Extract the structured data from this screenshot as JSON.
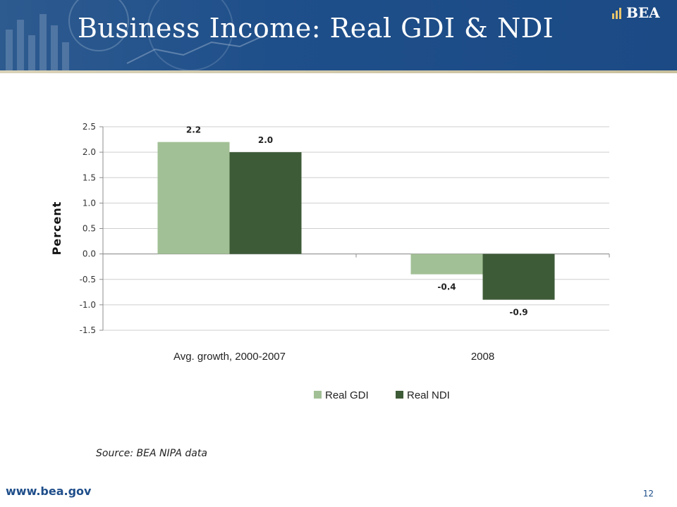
{
  "header": {
    "title": "Business Income: Real GDI & NDI",
    "logo": "BEA"
  },
  "chart_data": {
    "type": "bar",
    "categories": [
      "Avg. growth, 2000-2007",
      "2008"
    ],
    "series": [
      {
        "name": "Real GDI",
        "values": [
          2.2,
          -0.4
        ],
        "color": "#a2c095"
      },
      {
        "name": "Real NDI",
        "values": [
          2.0,
          -0.9
        ],
        "color": "#3e5b37"
      }
    ],
    "data_labels": [
      [
        "2.2",
        "-0.4"
      ],
      [
        "2.0",
        "-0.9"
      ]
    ],
    "ylabel": "Percent",
    "ylim": [
      -1.5,
      2.5
    ],
    "yticks": [
      2.5,
      2.0,
      1.5,
      1.0,
      0.5,
      0.0,
      -0.5,
      -1.0,
      -1.5
    ],
    "ytick_labels": [
      "2.5",
      "2.0",
      "1.5",
      "1.0",
      "0.5",
      "0.0",
      "-0.5",
      "-1.0",
      "-1.5"
    ],
    "grid": true,
    "legend": "bottom"
  },
  "footer": {
    "source": "Source: BEA NIPA data",
    "website": "www.bea.gov",
    "page_number": "12"
  }
}
